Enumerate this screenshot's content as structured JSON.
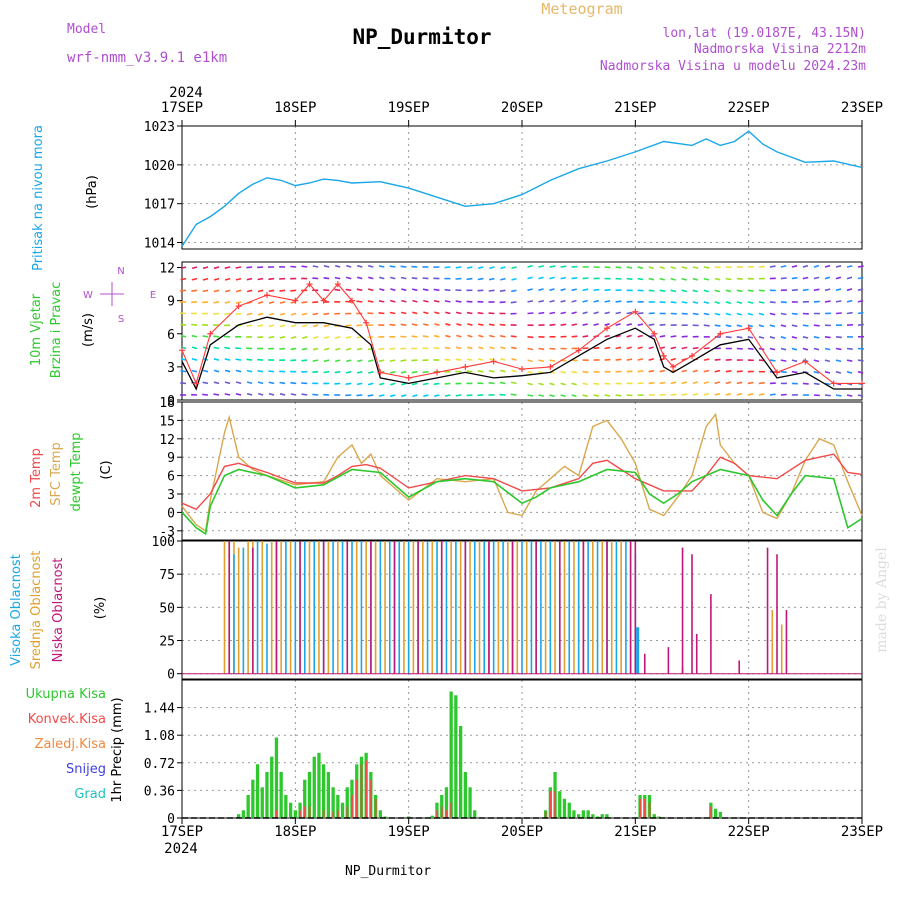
{
  "header": {
    "model_label": "Model",
    "model_name": "wrf-nmm_v3.9.1 e1km",
    "title": "NP_Durmitor",
    "subtitle": "Meteogram",
    "lonlat": "lon,lat (19.0187E, 43.15N)",
    "elevation": "Nadmorska Visina 2212m",
    "model_elevation": "Nadmorska Visina u modelu 2024.23m",
    "footer": "NP_Durmitor",
    "watermark": "made by Angel"
  },
  "time_axis": {
    "year": "2024",
    "days": [
      "17SEP",
      "18SEP",
      "19SEP",
      "20SEP",
      "21SEP",
      "22SEP",
      "23SEP"
    ],
    "range_hours": [
      0,
      144
    ]
  },
  "colors": {
    "pressure": "#1aa7e8",
    "wind_speed": "#000000",
    "wind_gust": "#ff3b3b",
    "temp2m": "#f04a4a",
    "sfc_temp": "#d9a84e",
    "dewpt": "#2ec82e",
    "high_cloud": "#1aa7e8",
    "mid_cloud": "#e0a030",
    "low_cloud": "#c0187a",
    "total_precip": "#2ec82e",
    "conv_precip": "#f04a4a",
    "frozen_precip": "#f08a40",
    "snow": "#4040e0",
    "hail": "#20c0c0",
    "label_purple": "#b04fcf"
  },
  "chart_data": [
    {
      "type": "line",
      "name": "pressure",
      "ylabel_left": "Pritisak na nivou mora",
      "ylabel_unit": "(hPa)",
      "ylim": [
        1013.5,
        1023
      ],
      "yticks": [
        1014,
        1017,
        1020,
        1023
      ],
      "series": [
        {
          "x": [
            0,
            3,
            6,
            9,
            12,
            15,
            18,
            21,
            24,
            27,
            30,
            33,
            36,
            42,
            48,
            54,
            60,
            66,
            72,
            78,
            84,
            90,
            96,
            102,
            108,
            111,
            114,
            117,
            120,
            123,
            126,
            132,
            138,
            144
          ],
          "values": [
            1013.7,
            1015.4,
            1016.0,
            1016.8,
            1017.8,
            1018.5,
            1019.0,
            1018.8,
            1018.4,
            1018.6,
            1018.9,
            1018.8,
            1018.6,
            1018.7,
            1018.2,
            1017.5,
            1016.8,
            1017.0,
            1017.7,
            1018.8,
            1019.7,
            1020.3,
            1021.0,
            1021.8,
            1021.5,
            1022.0,
            1021.5,
            1021.8,
            1022.6,
            1021.6,
            1021.0,
            1020.2,
            1020.3,
            1019.8
          ]
        }
      ]
    },
    {
      "type": "line",
      "name": "wind",
      "ylabel_left": "10m Vjetar Brzina i Pravac",
      "ylabel_unit": "(m/s)",
      "ylim": [
        0,
        12.5
      ],
      "yticks": [
        0,
        3,
        6,
        9,
        12
      ],
      "compass": [
        "N",
        "E",
        "S",
        "W"
      ],
      "series": [
        {
          "key": "speed",
          "x": [
            0,
            3,
            6,
            12,
            18,
            24,
            30,
            36,
            40,
            42,
            48,
            54,
            60,
            66,
            72,
            78,
            84,
            90,
            96,
            100,
            102,
            104,
            108,
            114,
            120,
            126,
            132,
            138,
            144
          ],
          "values": [
            3.5,
            1.0,
            5.0,
            6.8,
            7.5,
            7.0,
            7.0,
            6.5,
            5.0,
            2.0,
            1.5,
            2.0,
            2.5,
            2.0,
            2.2,
            2.5,
            4.0,
            5.5,
            6.5,
            5.5,
            3.0,
            2.5,
            3.5,
            5.0,
            5.5,
            2.0,
            2.5,
            1.0,
            1.0
          ]
        },
        {
          "key": "gust",
          "x": [
            0,
            3,
            6,
            12,
            18,
            24,
            27,
            30,
            33,
            36,
            39,
            42,
            48,
            54,
            60,
            66,
            72,
            78,
            84,
            90,
            96,
            100,
            102,
            104,
            108,
            114,
            120,
            126,
            132,
            138,
            144
          ],
          "values": [
            4.5,
            1.5,
            6.0,
            8.5,
            9.5,
            9.0,
            10.5,
            9.0,
            10.5,
            9.0,
            7.0,
            2.5,
            2.0,
            2.5,
            3.0,
            3.5,
            2.8,
            3.0,
            4.5,
            6.5,
            8.0,
            6.0,
            4.0,
            3.0,
            4.0,
            6.0,
            6.5,
            2.5,
            3.5,
            1.5,
            1.5
          ]
        }
      ]
    },
    {
      "type": "line",
      "name": "temperature",
      "ylabel_left": [
        "2m Temp",
        "SFC Temp",
        "dewpt Temp"
      ],
      "ylabel_unit": "(C)",
      "ylim": [
        -4.5,
        18
      ],
      "yticks": [
        -3,
        0,
        3,
        6,
        9,
        12,
        15,
        18
      ],
      "series": [
        {
          "key": "t2m",
          "x": [
            0,
            3,
            6,
            9,
            12,
            18,
            24,
            30,
            33,
            36,
            39,
            42,
            48,
            54,
            60,
            66,
            72,
            78,
            84,
            87,
            90,
            93,
            96,
            102,
            108,
            111,
            114,
            117,
            120,
            126,
            132,
            135,
            138,
            141,
            144
          ],
          "values": [
            1.5,
            0.5,
            3.0,
            7.5,
            8.0,
            6.5,
            4.8,
            4.8,
            6.0,
            7.5,
            7.8,
            7.2,
            4.0,
            5.0,
            6.0,
            5.5,
            3.5,
            4.0,
            5.5,
            8.0,
            8.5,
            7.0,
            5.5,
            3.5,
            3.5,
            6.0,
            9.0,
            8.0,
            6.0,
            5.5,
            8.5,
            9.0,
            9.5,
            6.5,
            6.2
          ]
        },
        {
          "key": "sfc",
          "x": [
            0,
            3,
            5,
            6,
            9,
            10,
            12,
            15,
            18,
            24,
            30,
            33,
            36,
            38,
            40,
            42,
            48,
            54,
            60,
            66,
            69,
            72,
            75,
            78,
            81,
            84,
            87,
            90,
            93,
            96,
            99,
            102,
            105,
            108,
            111,
            113,
            114,
            117,
            120,
            123,
            126,
            129,
            132,
            135,
            138,
            141,
            144
          ],
          "values": [
            1.0,
            -2.0,
            -3.0,
            2.0,
            13.0,
            15.5,
            9.0,
            7.0,
            6.0,
            4.5,
            5.0,
            9.0,
            11.0,
            8.0,
            9.5,
            6.0,
            2.0,
            5.5,
            5.0,
            5.5,
            0.0,
            -0.5,
            3.5,
            5.5,
            7.5,
            6.0,
            14.0,
            15.0,
            12.0,
            8.0,
            0.5,
            -0.5,
            2.5,
            6.0,
            14.0,
            16.0,
            11.0,
            8.0,
            6.0,
            0.0,
            -1.0,
            3.0,
            8.5,
            12.0,
            11.0,
            5.0,
            -0.5
          ]
        },
        {
          "key": "dewpt",
          "x": [
            0,
            3,
            5,
            6,
            9,
            12,
            18,
            24,
            30,
            36,
            42,
            48,
            54,
            60,
            66,
            72,
            75,
            78,
            84,
            90,
            96,
            99,
            102,
            105,
            108,
            114,
            120,
            123,
            126,
            129,
            132,
            138,
            141,
            144
          ],
          "values": [
            0.0,
            -2.5,
            -3.5,
            1.0,
            6.0,
            7.0,
            6.0,
            4.0,
            4.5,
            7.0,
            6.5,
            2.5,
            5.0,
            5.5,
            5.0,
            1.5,
            2.5,
            4.0,
            5.0,
            7.0,
            6.5,
            3.0,
            1.5,
            3.0,
            5.0,
            7.0,
            6.0,
            2.0,
            -0.5,
            3.0,
            6.0,
            5.5,
            -2.5,
            -1.0
          ]
        }
      ]
    },
    {
      "type": "bar",
      "name": "cloud",
      "ylabel_left": [
        "Visoka Oblacnost",
        "Srednja Oblacnost",
        "Niska Oblacnost"
      ],
      "ylabel_unit": "(%)",
      "ylim": [
        -4,
        100
      ],
      "yticks": [
        0,
        25,
        50,
        75,
        100
      ],
      "series": [
        {
          "key": "mid",
          "x": [
            9,
            10,
            11,
            12,
            14,
            15,
            17,
            19,
            21,
            23,
            25,
            27,
            29,
            31,
            33,
            35,
            37,
            39,
            41,
            43,
            45,
            47,
            49,
            51,
            53,
            55,
            57,
            59,
            61,
            63,
            65,
            67,
            69,
            71,
            73,
            75,
            77,
            79,
            81,
            83,
            85,
            87,
            89,
            91,
            93,
            95,
            125,
            127
          ],
          "values": [
            100,
            100,
            100,
            95,
            100,
            100,
            100,
            100,
            100,
            100,
            100,
            100,
            100,
            100,
            100,
            100,
            100,
            100,
            100,
            100,
            100,
            100,
            100,
            100,
            100,
            100,
            100,
            100,
            100,
            100,
            100,
            100,
            100,
            100,
            100,
            100,
            100,
            100,
            100,
            100,
            100,
            100,
            100,
            100,
            100,
            100,
            48,
            37
          ]
        },
        {
          "key": "high",
          "x": [
            11,
            13,
            16,
            18,
            20,
            22,
            24,
            26,
            28,
            30,
            32,
            34,
            36,
            38,
            40,
            42,
            44,
            46,
            48,
            50,
            52,
            54,
            56,
            58,
            60,
            62,
            64,
            66,
            68,
            70,
            72,
            74,
            76,
            78,
            80,
            82,
            84,
            86,
            88,
            90,
            92,
            94,
            96,
            106
          ],
          "values": [
            90,
            95,
            100,
            98,
            100,
            100,
            100,
            100,
            100,
            100,
            100,
            100,
            100,
            100,
            100,
            100,
            100,
            100,
            100,
            100,
            100,
            100,
            100,
            100,
            100,
            100,
            100,
            100,
            100,
            100,
            100,
            100,
            100,
            100,
            100,
            100,
            100,
            100,
            100,
            100,
            100,
            100,
            90,
            5
          ]
        },
        {
          "key": "low",
          "x": [
            10,
            15,
            20,
            25,
            30,
            35,
            40,
            45,
            50,
            55,
            60,
            65,
            70,
            75,
            80,
            85,
            90,
            95,
            96,
            98,
            103,
            106,
            108,
            109,
            112,
            118,
            124,
            126,
            128
          ],
          "values": [
            100,
            95,
            100,
            100,
            100,
            100,
            100,
            100,
            100,
            100,
            100,
            100,
            100,
            100,
            100,
            100,
            100,
            100,
            100,
            15,
            20,
            95,
            90,
            30,
            60,
            10,
            95,
            90,
            48
          ]
        },
        {
          "key": "high_solo",
          "x": [
            96.5
          ],
          "values": [
            35
          ]
        }
      ]
    },
    {
      "type": "bar",
      "name": "precip",
      "ylabel_left": [
        "Ukupna Kisa",
        "Konvek.Kisa",
        "Zaledj.Kisa",
        "Snijeg",
        "Grad"
      ],
      "ylabel_unit": "1hr Precip (mm)",
      "ylim": [
        0,
        1.8
      ],
      "yticks": [
        0,
        0.36,
        0.72,
        1.08,
        1.44
      ],
      "series": [
        {
          "key": "total",
          "x": [
            12,
            13,
            14,
            15,
            16,
            17,
            18,
            19,
            20,
            21,
            22,
            23,
            24,
            25,
            26,
            27,
            28,
            29,
            30,
            31,
            32,
            33,
            34,
            35,
            36,
            37,
            38,
            39,
            40,
            41,
            42,
            43,
            44,
            45,
            46,
            47,
            48,
            53,
            54,
            55,
            56,
            57,
            58,
            59,
            60,
            61,
            62,
            63,
            64,
            65,
            66,
            77,
            78,
            79,
            80,
            81,
            82,
            83,
            84,
            85,
            86,
            87,
            88,
            89,
            90,
            97,
            98,
            99,
            100,
            101,
            102,
            103,
            104,
            105,
            106,
            107,
            112,
            113,
            114
          ],
          "values": [
            0.05,
            0.1,
            0.3,
            0.5,
            0.7,
            0.4,
            0.6,
            0.8,
            1.05,
            0.6,
            0.3,
            0.2,
            0.1,
            0.2,
            0.5,
            0.6,
            0.8,
            0.85,
            0.7,
            0.6,
            0.4,
            0.3,
            0.2,
            0.4,
            0.5,
            0.7,
            0.8,
            0.85,
            0.6,
            0.3,
            0.1,
            0.02,
            0.0,
            0.0,
            0.0,
            0.0,
            0.02,
            0.03,
            0.2,
            0.3,
            0.4,
            1.65,
            1.6,
            1.2,
            0.6,
            0.4,
            0.1,
            0.0,
            0.0,
            0.0,
            0.0,
            0.1,
            0.4,
            0.6,
            0.35,
            0.25,
            0.2,
            0.1,
            0.05,
            0.1,
            0.1,
            0.05,
            0.02,
            0.05,
            0.05,
            0.3,
            0.3,
            0.3,
            0.05,
            0.02,
            0.0,
            0.0,
            0.0,
            0.0,
            0.0,
            0.0,
            0.2,
            0.12,
            0.08
          ]
        },
        {
          "key": "conv",
          "x": [
            20,
            25,
            26,
            27,
            30,
            32,
            33,
            35,
            36,
            37,
            38,
            39,
            40,
            41,
            54,
            55,
            56,
            57,
            77,
            78,
            79,
            97,
            98,
            99,
            112
          ],
          "values": [
            0.1,
            0.1,
            0.15,
            0.15,
            0.1,
            0.08,
            0.1,
            0.15,
            0.3,
            0.5,
            0.7,
            0.75,
            0.5,
            0.25,
            0.1,
            0.15,
            0.1,
            0.2,
            0.08,
            0.35,
            0.35,
            0.25,
            0.25,
            0.2,
            0.15
          ]
        }
      ]
    }
  ]
}
